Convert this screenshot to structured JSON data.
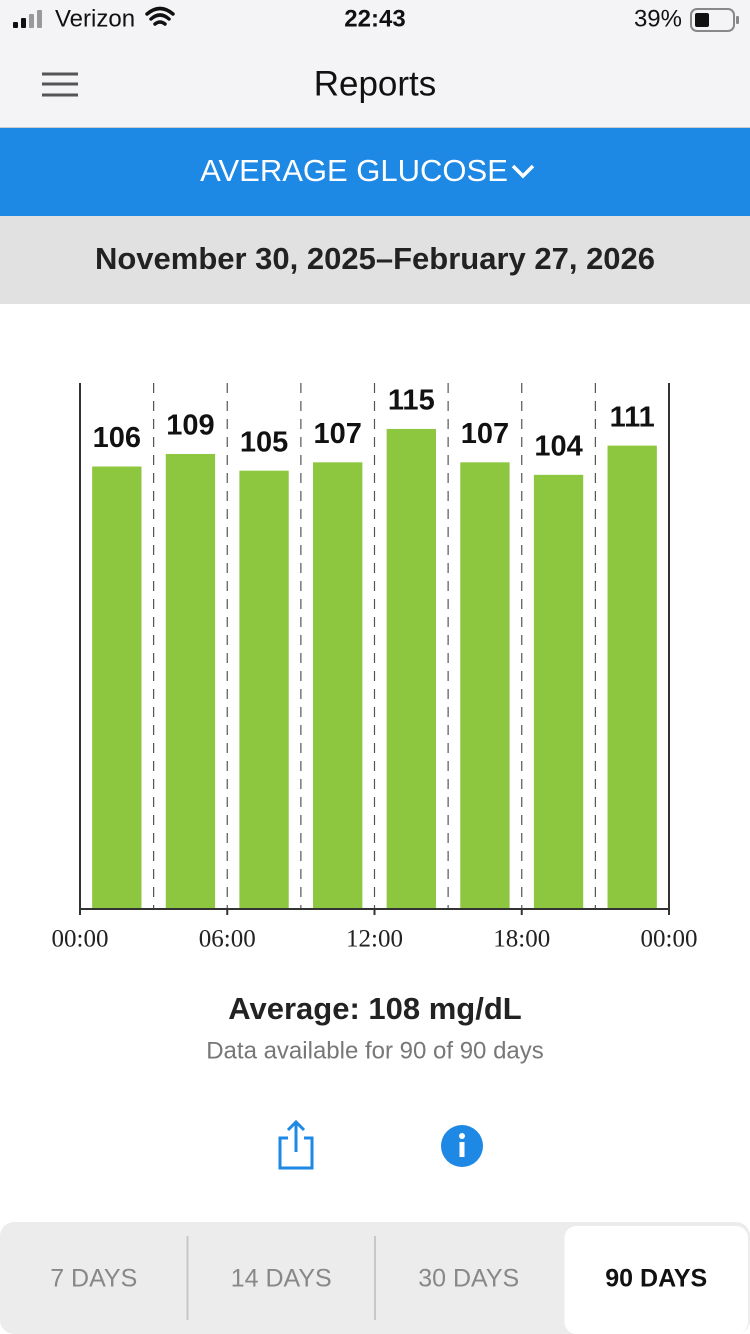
{
  "status_bar": {
    "carrier": "Verizon",
    "time": "22:43",
    "battery": "39%"
  },
  "header": {
    "title": "Reports"
  },
  "report_selector": "AVERAGE GLUCOSE",
  "date_range": "November 30, 2025–February 27, 2026",
  "chart_data": {
    "type": "bar",
    "x": [
      1.5,
      4.5,
      7.5,
      10.5,
      13.5,
      16.5,
      19.5,
      22.5
    ],
    "values": [
      106,
      109,
      105,
      107,
      115,
      107,
      104,
      111
    ],
    "color": "#8dc63f",
    "xlim": [
      0,
      24
    ],
    "xticks": [
      {
        "value": 0,
        "label": "00:00"
      },
      {
        "value": 6,
        "label": "06:00"
      },
      {
        "value": 12,
        "label": "12:00"
      },
      {
        "value": 18,
        "label": "18:00"
      },
      {
        "value": 24,
        "label": "00:00"
      }
    ],
    "ylim": [
      0,
      126
    ],
    "grid": true
  },
  "summary": {
    "average": "Average: 108 mg/dL",
    "availability": "Data available for 90 of 90 days"
  },
  "tabs": {
    "items": [
      "7 DAYS",
      "14 DAYS",
      "30 DAYS",
      "90 DAYS"
    ],
    "selected": 3
  }
}
